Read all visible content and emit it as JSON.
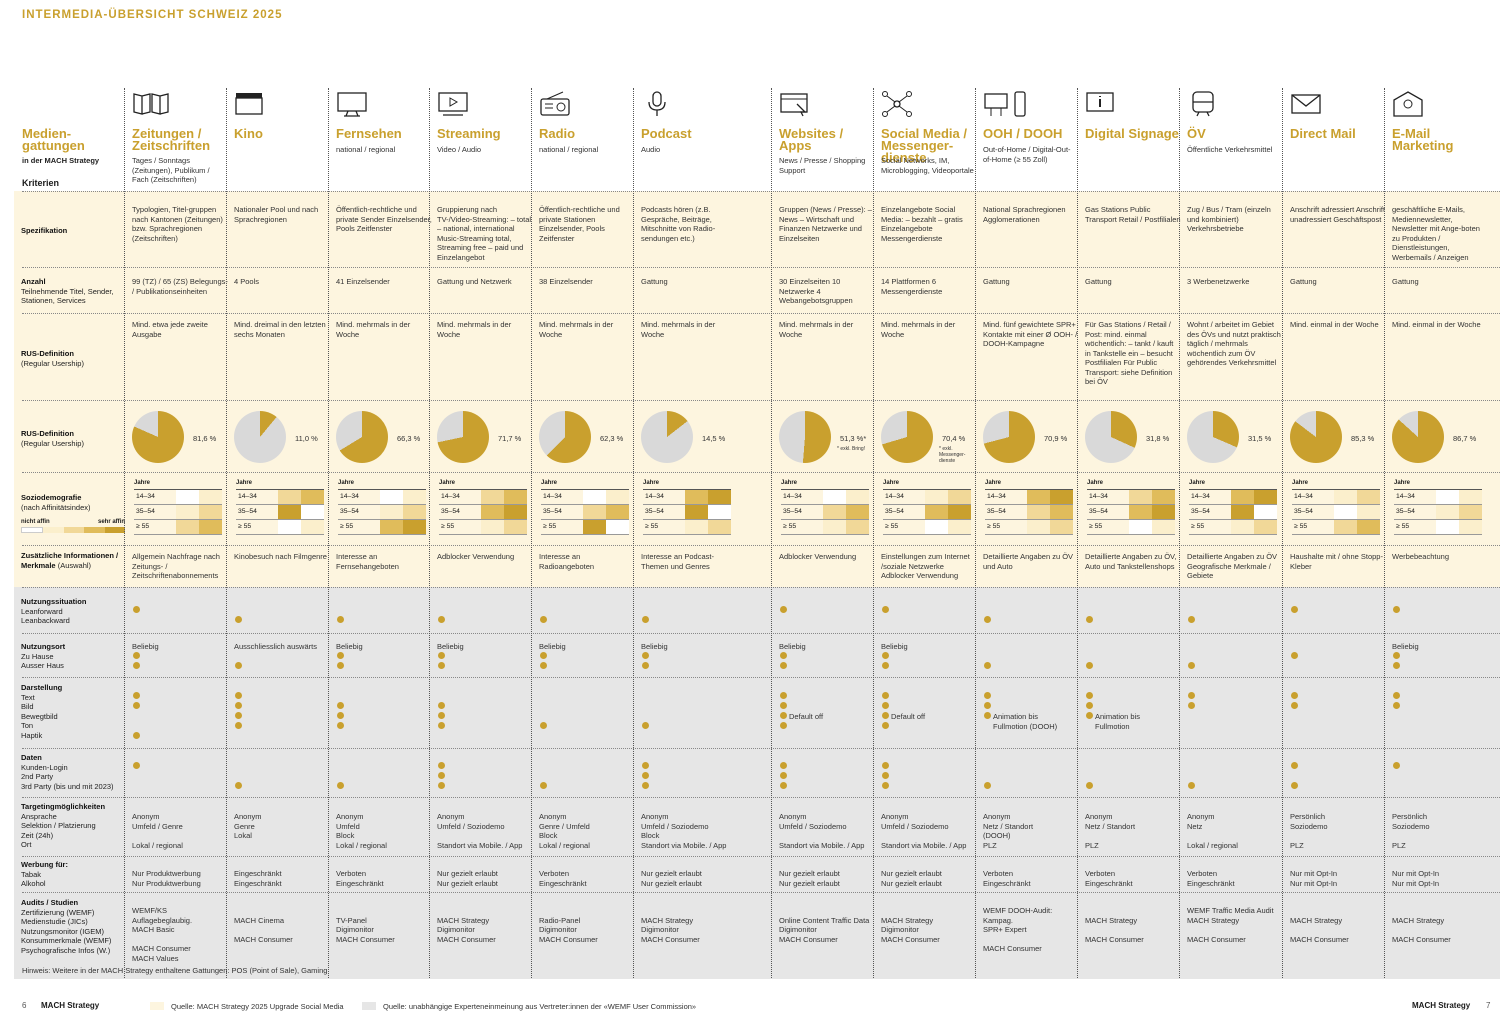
{
  "title": "INTERMEDIA-ÜBERSICHT SCHWEIZ 2025",
  "left_header": {
    "title": "Medien-gattungen",
    "sub": "in der MACH Strategy",
    "kriterien": "Kriterien"
  },
  "row_labels": {
    "spez": "Spezifikation",
    "anzahl_t": "Anzahl",
    "anzahl_s": "Teilnehmende Titel, Sender, Stationen, Services",
    "rus1_t": "RUS-Definition",
    "rus1_s": "(Regular Usership)",
    "rus2_t": "RUS-Definition",
    "rus2_s": "(Regular Usership)",
    "sozio_t": "Soziodemografie",
    "sozio_s": "(nach Affinitätsindex)",
    "nicht_affin": "nicht affin",
    "sehr_affin": "sehr affin",
    "zus_t": "Zusätzliche Informationen / Merkmale",
    "zus_s": "(Auswahl)",
    "nutz_t": "Nutzungssituation",
    "nutz_s": "Leanforward\nLeanbackward",
    "ort_t": "Nutzungsort",
    "ort_s": "Zu Hause\nAusser Haus",
    "dar_t": "Darstellung",
    "dar_s": "Text\nBild\nBewegtbild\nTon\nHaptik",
    "dat_t": "Daten",
    "dat_s": "Kunden-Login\n2nd Party\n3rd Party (bis und mit 2023)",
    "tar_t": "Targetingmöglichkeiten",
    "tar_s": "Ansprache\nSelektion / Platzierung\nZeit (24h)\nOrt",
    "wer_t": "Werbung für:",
    "wer_s": "Tabak\nAlkohol",
    "aud_t": "Audits / Studien",
    "aud_s": "Zertifizierung (WEMF)\nMedienstudie (JICs)\nNutzungsmonitor (IGEM)\nKonsummerkmale (WEMF)\nPsychografische Infos (W.)"
  },
  "age_labels": {
    "jahre": "Jahre",
    "a1": "14–34",
    "a2": "35–54",
    "a3": "≥ 55"
  },
  "columns": [
    {
      "name": "Zeitungen / Zeitschriften",
      "sub": "Tages / Sonntags (Zeitungen), Publikum / Fach (Zeitschriften)",
      "icon": "newspaper-icon",
      "spez": "Typologien, Titel-gruppen nach Kantonen (Zeitungen) bzw. Sprachregionen (Zeitschriften)",
      "anzahl": "99 (TZ) / 65 (ZS) Belegungs- / Publikationseinheiten",
      "rus": "Mind. etwa jede zweite Ausgabe",
      "pct": 81.6,
      "pct_label": "81,6 %",
      "zus": "Allgemein Nachfrage nach Zeitungs- / Zeitschriftenabonnements",
      "ort": "Beliebig",
      "tar": "Anonym\nUmfeld / Genre\n\nLokal / regional",
      "wer": "Nur Produktwerbung\nNur Produktwerbung",
      "aud": "WEMF/KS Auflagebeglaubig.\nMACH Basic\n\nMACH Consumer\nMACH Values"
    },
    {
      "name": "Kino",
      "sub": "",
      "icon": "clapperboard-icon",
      "spez": "Nationaler Pool und nach Sprachregionen",
      "anzahl": "4 Pools",
      "rus": "Mind. dreimal in den letzten sechs Monaten",
      "pct": 11.0,
      "pct_label": "11,0 %",
      "zus": "Kinobesuch nach Filmgenre",
      "ort": "Ausschliesslich auswärts",
      "tar": "Anonym\nGenre\nLokal",
      "wer": "Eingeschränkt\nEingeschränkt",
      "aud": "\nMACH Cinema\n\nMACH Consumer"
    },
    {
      "name": "Fernsehen",
      "sub": "national / regional",
      "icon": "tv-icon",
      "spez": "Öffentlich-rechtliche und private Sender Einzelsender, Pools Zeitfenster",
      "anzahl": "41 Einzelsender",
      "rus": "Mind. mehrmals in der Woche",
      "pct": 66.3,
      "pct_label": "66,3 %",
      "zus": "Interesse an Fernsehangeboten",
      "ort": "Beliebig",
      "tar": "Anonym\nUmfeld\nBlock\nLokal / regional",
      "wer": "Verboten\nEingeschränkt",
      "aud": "\nTV-Panel\nDigimonitor\nMACH Consumer"
    },
    {
      "name": "Streaming",
      "sub": "Video / Audio",
      "icon": "streaming-icon",
      "spez": "Gruppierung nach TV-/Video-Streaming: – total – national, international Music-Streaming total, Streaming free – paid und Einzelangebot",
      "anzahl": "Gattung und Netzwerk",
      "rus": "Mind. mehrmals in der Woche",
      "pct": 71.7,
      "pct_label": "71,7 %",
      "zus": "Adblocker Verwendung",
      "ort": "Beliebig",
      "tar": "Anonym\nUmfeld / Soziodemo\n\nStandort via Mobile. / App",
      "wer": "Nur gezielt erlaubt\nNur gezielt erlaubt",
      "aud": "\nMACH Strategy\nDigimonitor\nMACH Consumer"
    },
    {
      "name": "Radio",
      "sub": "national / regional",
      "icon": "radio-icon",
      "spez": "Öffentlich-rechtliche und private Stationen Einzelsender, Pools Zeitfenster",
      "anzahl": "38 Einzelsender",
      "rus": "Mind. mehrmals in der Woche",
      "pct": 62.3,
      "pct_label": "62,3 %",
      "zus": "Interesse an Radioangeboten",
      "ort": "Beliebig",
      "tar": "Anonym\nGenre / Umfeld\nBlock\nLokal / regional",
      "wer": "Verboten\nEingeschränkt",
      "aud": "\nRadio-Panel\nDigimonitor\nMACH Consumer"
    },
    {
      "name": "Podcast",
      "sub": "Audio",
      "icon": "microphone-icon",
      "spez": "Podcasts hören (z.B. Gespräche, Beiträge, Mitschnitte von Radio-sendungen etc.)",
      "anzahl": "Gattung",
      "rus": "Mind. mehrmals in der Woche",
      "pct": 14.5,
      "pct_label": "14,5 %",
      "zus": "Interesse an Podcast-Themen und Genres",
      "ort": "Beliebig",
      "tar": "Anonym\nUmfeld / Soziodemo\nBlock\nStandort via Mobile. / App",
      "wer": "Nur gezielt erlaubt\nNur gezielt erlaubt",
      "aud": "\nMACH Strategy\nDigimonitor\nMACH Consumer"
    },
    {
      "name": "Websites / Apps",
      "sub": "News / Presse / Shopping Support",
      "icon": "browser-icon",
      "spez": "Gruppen (News / Presse): – News – Wirtschaft und Finanzen Netzwerke und Einzelseiten",
      "anzahl": "30 Einzelseiten 10 Netzwerke 4 Webangebotsgruppen",
      "rus": "Mind. mehrmals in der Woche",
      "pct": 51.3,
      "pct_label": "51,3 %*",
      "note": "* exkl. Bring!",
      "zus": "Adblocker Verwendung",
      "ort": "Beliebig",
      "dar_note": "Default off",
      "tar": "Anonym\nUmfeld / Soziodemo\n\nStandort via Mobile. / App",
      "wer": "Nur gezielt erlaubt\nNur gezielt erlaubt",
      "aud": "\nOnline Content Traffic Data\nDigimonitor\nMACH Consumer"
    },
    {
      "name": "Social Media / Messenger-dienste",
      "sub": "Social Networks, IM, Microblogging, Videoportale",
      "icon": "network-icon",
      "spez": "Einzelangebote Social Media: – bezahlt – gratis Einzelangebote Messengerdienste",
      "anzahl": "14 Plattformen 6 Messengerdienste",
      "rus": "Mind. mehrmals in der Woche",
      "pct": 70.4,
      "pct_label": "70,4 %",
      "note": "* exkl. Messenger-dienste",
      "zus": "Einstellungen zum Internet /soziale Netzwerke Adblocker Verwendung",
      "ort": "Beliebig",
      "dar_note": "Default off",
      "tar": "Anonym\nUmfeld / Soziodemo\n\nStandort via Mobile. / App",
      "wer": "Nur gezielt erlaubt\nNur gezielt erlaubt",
      "aud": "\nMACH Strategy\nDigimonitor\nMACH Consumer"
    },
    {
      "name": "OOH / DOOH",
      "sub": "Out-of-Home / Digital-Out-of-Home (≥ 55 Zoll)",
      "icon": "billboard-icon",
      "spez": "National Sprachregionen Agglomerationen",
      "anzahl": "Gattung",
      "rus": "Mind. fünf gewichtete SPR+ Kontakte mit einer Ø OOH- / DOOH-Kampagne",
      "pct": 70.9,
      "pct_label": "70,9 %",
      "zus": "Detaillierte Angaben zu ÖV und Auto",
      "ort": "",
      "dar_note": "Animation bis Fullmotion (DOOH)",
      "tar": "Anonym\nNetz / Standort\n(DOOH)\nPLZ",
      "wer": "Verboten\nEingeschränkt",
      "aud": "WEMF DOOH-Audit: Kampag.\nSPR+ Expert\n\nMACH Consumer"
    },
    {
      "name": "Digital Signage",
      "sub": "",
      "icon": "info-screen-icon",
      "spez": "Gas Stations Public Transport Retail / Postfilialen",
      "anzahl": "Gattung",
      "rus": "Für Gas Stations / Retail / Post: mind. einmal wöchentlich: – tankt / kauft in Tankstelle ein – besucht Postfilialen Für Public Transport: siehe Definition bei ÖV",
      "pct": 31.8,
      "pct_label": "31,8 %",
      "zus": "Detaillierte Angaben zu ÖV, Auto und Tankstellenshops",
      "ort": "",
      "dar_note": "Animation bis Fullmotion",
      "tar": "Anonym\nNetz / Standort\n\nPLZ",
      "wer": "Verboten\nEingeschränkt",
      "aud": "\nMACH Strategy\n\nMACH Consumer"
    },
    {
      "name": "ÖV",
      "sub": "Öffentliche Verkehrsmittel",
      "icon": "train-icon",
      "spez": "Zug / Bus / Tram (einzeln und kombiniert) Verkehrsbetriebe",
      "anzahl": "3 Werbenetzwerke",
      "rus": "Wohnt / arbeitet im Gebiet des ÖVs und nutzt praktisch täglich / mehrmals wöchentlich zum ÖV gehörendes Verkehrsmittel",
      "pct": 31.5,
      "pct_label": "31,5 %",
      "zus": "Detaillierte Angaben zu ÖV Geografische Merkmale / Gebiete",
      "ort": "",
      "tar": "Anonym\nNetz\n\nLokal / regional",
      "wer": "Verboten\nEingeschränkt",
      "aud": "WEMF Traffic Media Audit\nMACH Strategy\n\nMACH Consumer"
    },
    {
      "name": "Direct Mail",
      "sub": "",
      "icon": "envelope-icon",
      "spez": "Anschrift adressiert Anschrift unadressiert Geschäftspost",
      "anzahl": "Gattung",
      "rus": "Mind. einmal in der Woche",
      "pct": 85.3,
      "pct_label": "85,3 %",
      "zus": "Haushalte mit / ohne Stopp-Kleber",
      "ort": "",
      "tar": "Persönlich\nSoziodemo\n\nPLZ",
      "wer": "Nur mit Opt-In\nNur mit Opt-In",
      "aud": "\nMACH Strategy\n\nMACH Consumer"
    },
    {
      "name": "E-Mail Marketing",
      "sub": "",
      "icon": "email-icon",
      "spez": "geschäftliche E-Mails, Mediennewsletter, Newsletter mit Ange-boten zu Produkten / Dienstleistungen, Werbemails / Anzeigen",
      "anzahl": "Gattung",
      "rus": "Mind. einmal in der Woche",
      "pct": 86.7,
      "pct_label": "86,7 %",
      "zus": "Werbebeachtung",
      "ort": "Beliebig",
      "tar": "Persönlich\nSoziodemo\n\nPLZ",
      "wer": "Nur mit Opt-In\nNur mit Opt-In",
      "aud": "\nMACH Strategy\n\nMACH Consumer"
    }
  ],
  "hinweis": "Hinweis: Weitere in der MACH Strategy enthaltene Gattungen: POS (Point of Sale), Gaming",
  "footer": {
    "page_left": "6",
    "brand_left": "MACH Strategy",
    "legend1": "Quelle: MACH Strategy 2025 Upgrade Social Media",
    "legend2": "Quelle: unabhängige Experteneinmeinung aus Vertreter:innen der «WEMF User Commission»",
    "brand_right": "MACH Strategy",
    "page_right": "7"
  },
  "colors": {
    "gold": "#c9a02e",
    "grey": "#d9d9d9",
    "band_yellow": "#fdf5df",
    "band_grey": "#e6e6e6"
  }
}
